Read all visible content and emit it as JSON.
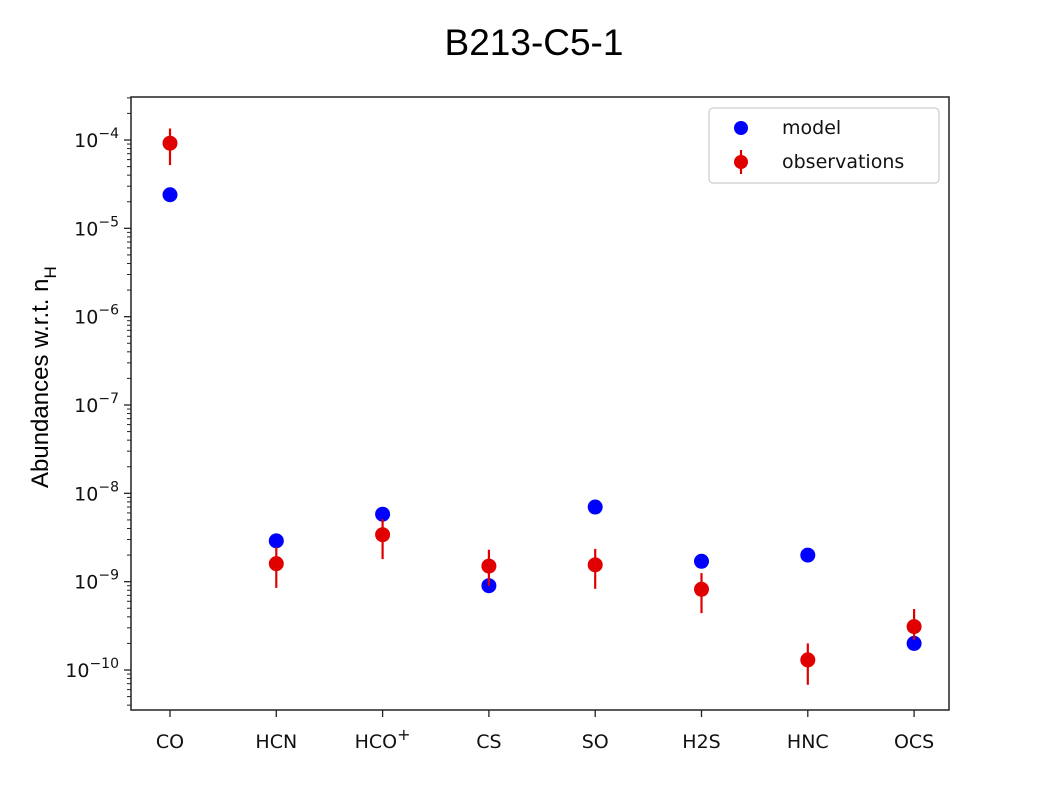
{
  "chart_data": {
    "type": "scatter",
    "title": "B213-C5-1",
    "ylabel": "Abundances w.r.t. n",
    "ylabel_subscript": "H",
    "yscale": "log",
    "ylim": [
      3e-11,
      0.0005
    ],
    "yticks": [
      {
        "value": 0.0001,
        "mantissa": "10",
        "exp": "−4"
      },
      {
        "value": 1e-05,
        "mantissa": "10",
        "exp": "−5"
      },
      {
        "value": 1e-06,
        "mantissa": "10",
        "exp": "−6"
      },
      {
        "value": 1e-07,
        "mantissa": "10",
        "exp": "−7"
      },
      {
        "value": 1e-08,
        "mantissa": "10",
        "exp": "−8"
      },
      {
        "value": 1e-09,
        "mantissa": "10",
        "exp": "−9"
      },
      {
        "value": 1e-10,
        "mantissa": "10",
        "exp": "−10"
      }
    ],
    "categories": [
      {
        "base": "CO",
        "sup": ""
      },
      {
        "base": "HCN",
        "sup": ""
      },
      {
        "base": "HCO",
        "sup": "+"
      },
      {
        "base": "CS",
        "sup": ""
      },
      {
        "base": "SO",
        "sup": ""
      },
      {
        "base": "H2S",
        "sup": ""
      },
      {
        "base": "HNC",
        "sup": ""
      },
      {
        "base": "OCS",
        "sup": ""
      }
    ],
    "grid": false,
    "legend_position": "top-right",
    "series": [
      {
        "name": "model",
        "color": "#0000ff",
        "values": [
          2.4e-05,
          2.9e-09,
          5.8e-09,
          9e-10,
          7e-09,
          1.7e-09,
          2e-09,
          2e-10
        ]
      },
      {
        "name": "observations",
        "color": "#e00000",
        "values": [
          9.2e-05,
          1.6e-09,
          3.4e-09,
          1.5e-09,
          1.55e-09,
          8.2e-10,
          1.3e-10,
          3.1e-10
        ],
        "err_low": [
          5.2e-05,
          8.5e-10,
          1.8e-09,
          9e-10,
          8.3e-10,
          4.4e-10,
          6.8e-11,
          2.2e-10
        ],
        "err_high": [
          0.000135,
          2.45e-09,
          5.1e-09,
          2.3e-09,
          2.35e-09,
          1.25e-09,
          2e-10,
          4.9e-10
        ]
      }
    ]
  }
}
